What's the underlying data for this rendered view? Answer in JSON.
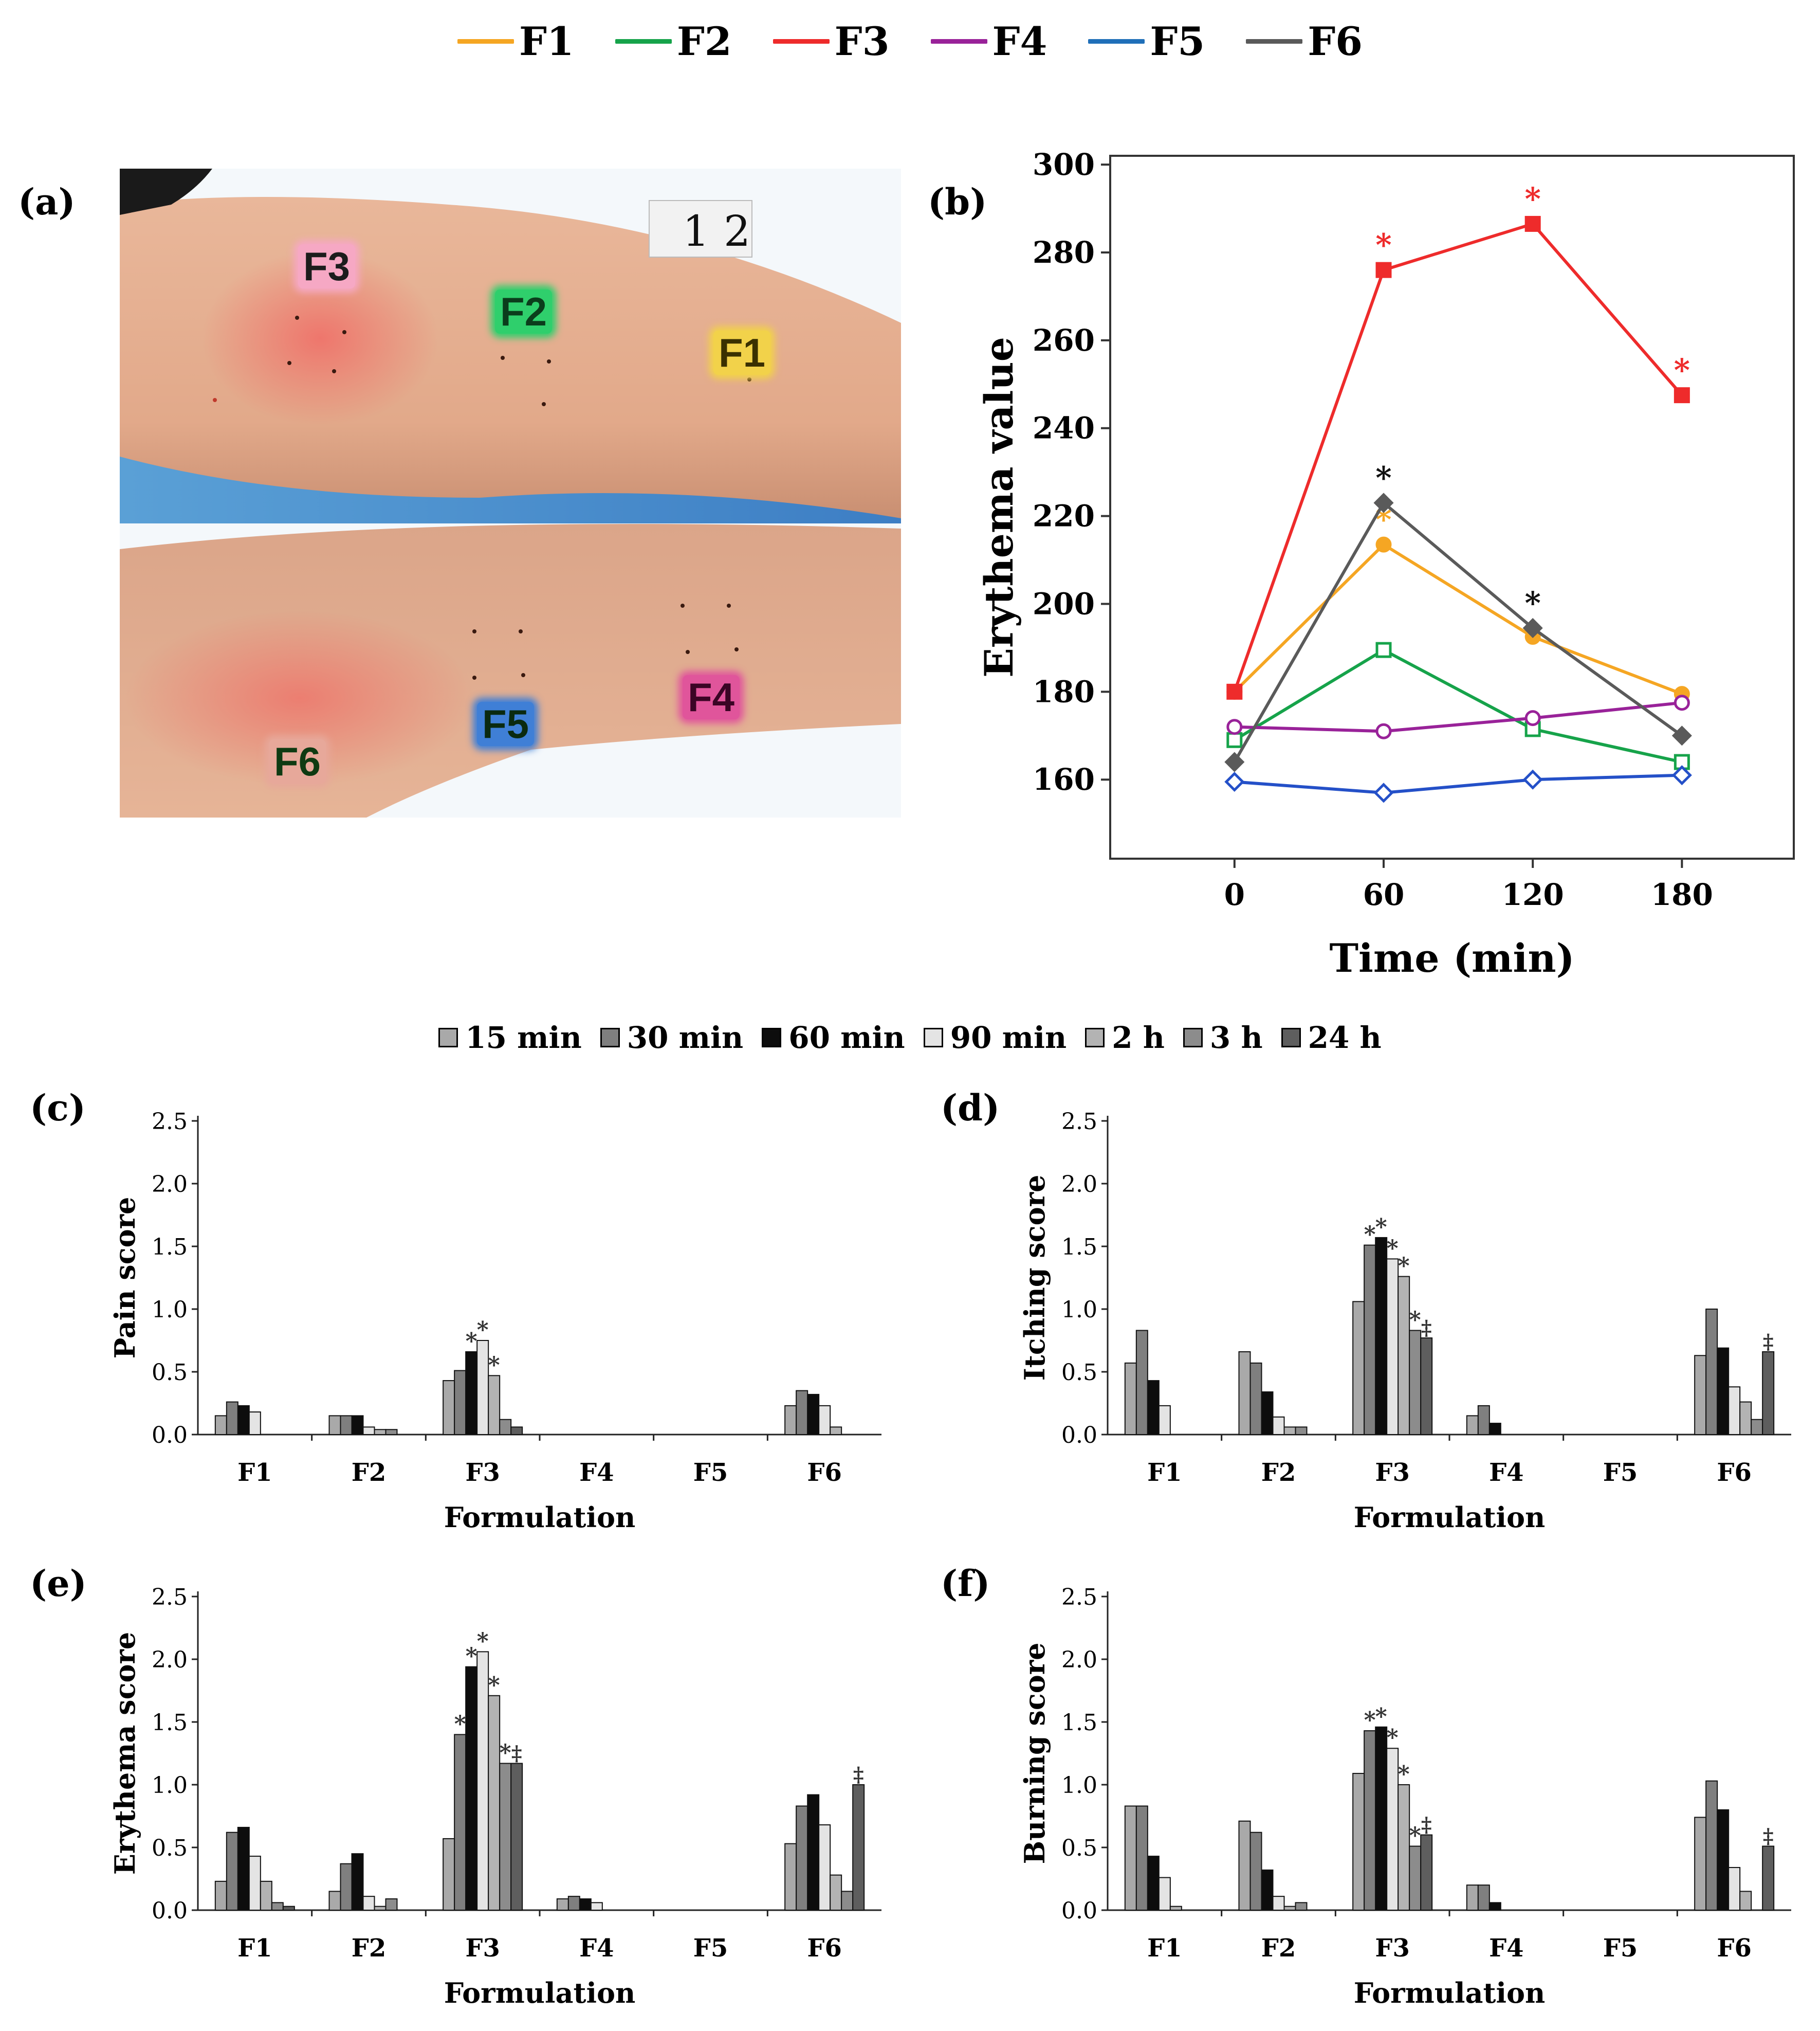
{
  "panel_labels": {
    "a": "(a)",
    "b": "(b)",
    "c": "(c)",
    "d": "(d)",
    "e": "(e)",
    "f": "(f)"
  },
  "photo": {
    "labels": [
      {
        "text": "F3",
        "bg": "#f6a8c4",
        "color": "#1c1c1c"
      },
      {
        "text": "F2",
        "bg": "#2fcf6c",
        "color": "#0b3d1c"
      },
      {
        "text": "F1",
        "bg": "#f2d24a",
        "color": "#3a3000"
      },
      {
        "text": "F4",
        "bg": "#e0559b",
        "color": "#3b0525"
      },
      {
        "text": "F5",
        "bg": "#3f7fd6",
        "color": "#0a2a10"
      },
      {
        "text": "F6",
        "bg": "#e7a89a",
        "color": "#0f3a12"
      }
    ],
    "ruler_numbers": [
      "1",
      "2"
    ]
  },
  "legend_top": [
    {
      "name": "F1",
      "color": "#f5a623"
    },
    {
      "name": "F2",
      "color": "#16a34a"
    },
    {
      "name": "F3",
      "color": "#ee2b2b"
    },
    {
      "name": "F4",
      "color": "#992299"
    },
    {
      "name": "F5",
      "color": "#1f6fb8"
    },
    {
      "name": "F6",
      "color": "#5a5a5a"
    }
  ],
  "legend_bars": [
    {
      "name": "15 min",
      "color": "#a9a9a9"
    },
    {
      "name": "30 min",
      "color": "#7f7f7f"
    },
    {
      "name": "60 min",
      "color": "#0d0d0d"
    },
    {
      "name": "90 min",
      "color": "#e4e4e4"
    },
    {
      "name": "2 h",
      "color": "#b3b3b3"
    },
    {
      "name": "3 h",
      "color": "#8c8c8c"
    },
    {
      "name": "24 h",
      "color": "#5e5e5e"
    }
  ],
  "chart_data": [
    {
      "id": "b",
      "type": "line",
      "xlabel": "Time (min)",
      "ylabel": "Erythema value",
      "x": [
        0,
        60,
        120,
        180
      ],
      "xticks": [
        "0",
        "60",
        "120",
        "180"
      ],
      "yticks": [
        "160",
        "180",
        "200",
        "220",
        "240",
        "260",
        "280",
        "300"
      ],
      "xlim": [
        -50,
        225
      ],
      "ylim": [
        142,
        302
      ],
      "series": [
        {
          "name": "F1",
          "color": "#f5a623",
          "marker": "circle-filled",
          "values": [
            180,
            213.5,
            192.5,
            179.5
          ],
          "stars": [
            false,
            true,
            false,
            false
          ]
        },
        {
          "name": "F2",
          "color": "#16a34a",
          "marker": "square-open",
          "values": [
            169,
            189.5,
            171.5,
            164
          ],
          "stars": [
            false,
            false,
            false,
            false
          ]
        },
        {
          "name": "F3",
          "color": "#ee2b2b",
          "marker": "square-filled",
          "values": [
            180,
            276,
            286.5,
            247.5
          ],
          "stars": [
            false,
            true,
            true,
            true
          ]
        },
        {
          "name": "F4",
          "color": "#992299",
          "marker": "circle-open",
          "values": [
            172,
            171,
            174,
            177.5
          ],
          "stars": [
            false,
            false,
            false,
            false
          ]
        },
        {
          "name": "F5",
          "color": "#2450c8",
          "marker": "diamond-open",
          "values": [
            159.5,
            157,
            160,
            161
          ],
          "stars": [
            false,
            false,
            false,
            false
          ]
        },
        {
          "name": "F6",
          "color": "#5a5a5a",
          "marker": "diamond-filled",
          "values": [
            164,
            223,
            194.5,
            170
          ],
          "stars": [
            false,
            true,
            true,
            false
          ]
        }
      ]
    },
    {
      "id": "c",
      "type": "bar",
      "ylabel": "Pain score",
      "xlabel": "Formulation",
      "categories": [
        "F1",
        "F2",
        "F3",
        "F4",
        "F5",
        "F6"
      ],
      "ylim": [
        0,
        2.5
      ],
      "yticks": [
        "0.0",
        "0.5",
        "1.0",
        "1.5",
        "2.0",
        "2.5"
      ],
      "series": [
        {
          "name": "15 min",
          "values": [
            0.15,
            0.15,
            0.43,
            0,
            0,
            0.23
          ]
        },
        {
          "name": "30 min",
          "values": [
            0.26,
            0.15,
            0.51,
            0,
            0,
            0.35
          ]
        },
        {
          "name": "60 min",
          "values": [
            0.23,
            0.15,
            0.66,
            0,
            0,
            0.32
          ]
        },
        {
          "name": "90 min",
          "values": [
            0.18,
            0.06,
            0.75,
            0,
            0,
            0.23
          ]
        },
        {
          "name": "2 h",
          "values": [
            0,
            0.04,
            0.47,
            0,
            0,
            0.06
          ]
        },
        {
          "name": "3 h",
          "values": [
            0,
            0.04,
            0.12,
            0,
            0,
            0
          ]
        },
        {
          "name": "24 h",
          "values": [
            0,
            0,
            0.06,
            0,
            0,
            0
          ]
        }
      ],
      "annotations": [
        {
          "cat": 2,
          "ser": 2,
          "text": "*"
        },
        {
          "cat": 2,
          "ser": 3,
          "text": "*"
        },
        {
          "cat": 2,
          "ser": 4,
          "text": "*"
        }
      ]
    },
    {
      "id": "d",
      "type": "bar",
      "ylabel": "Itching score",
      "xlabel": "Formulation",
      "categories": [
        "F1",
        "F2",
        "F3",
        "F4",
        "F5",
        "F6"
      ],
      "ylim": [
        0,
        2.5
      ],
      "yticks": [
        "0.0",
        "0.5",
        "1.0",
        "1.5",
        "2.0",
        "2.5"
      ],
      "series": [
        {
          "name": "15 min",
          "values": [
            0.57,
            0.66,
            1.06,
            0.15,
            0,
            0.63
          ]
        },
        {
          "name": "30 min",
          "values": [
            0.83,
            0.57,
            1.51,
            0.23,
            0,
            1.0
          ]
        },
        {
          "name": "60 min",
          "values": [
            0.43,
            0.34,
            1.57,
            0.09,
            0,
            0.69
          ]
        },
        {
          "name": "90 min",
          "values": [
            0.23,
            0.14,
            1.4,
            0,
            0,
            0.38
          ]
        },
        {
          "name": "2 h",
          "values": [
            0,
            0.06,
            1.26,
            0,
            0,
            0.26
          ]
        },
        {
          "name": "3 h",
          "values": [
            0,
            0.06,
            0.83,
            0,
            0,
            0.12
          ]
        },
        {
          "name": "24 h",
          "values": [
            0,
            0,
            0.77,
            0,
            0,
            0.66
          ]
        }
      ],
      "annotations": [
        {
          "cat": 2,
          "ser": 1,
          "text": "*"
        },
        {
          "cat": 2,
          "ser": 2,
          "text": "*"
        },
        {
          "cat": 2,
          "ser": 3,
          "text": "*"
        },
        {
          "cat": 2,
          "ser": 4,
          "text": "*"
        },
        {
          "cat": 2,
          "ser": 5,
          "text": "*"
        },
        {
          "cat": 2,
          "ser": 6,
          "text": "‡"
        },
        {
          "cat": 5,
          "ser": 6,
          "text": "‡"
        }
      ]
    },
    {
      "id": "e",
      "type": "bar",
      "ylabel": "Erythema score",
      "xlabel": "Formulation",
      "categories": [
        "F1",
        "F2",
        "F3",
        "F4",
        "F5",
        "F6"
      ],
      "ylim": [
        0,
        2.5
      ],
      "yticks": [
        "0.0",
        "0.5",
        "1.0",
        "1.5",
        "2.0",
        "2.5"
      ],
      "series": [
        {
          "name": "15 min",
          "values": [
            0.23,
            0.15,
            0.57,
            0.09,
            0,
            0.53
          ]
        },
        {
          "name": "30 min",
          "values": [
            0.62,
            0.37,
            1.4,
            0.11,
            0,
            0.83
          ]
        },
        {
          "name": "60 min",
          "values": [
            0.66,
            0.45,
            1.94,
            0.09,
            0,
            0.92
          ]
        },
        {
          "name": "90 min",
          "values": [
            0.43,
            0.11,
            2.06,
            0.06,
            0,
            0.68
          ]
        },
        {
          "name": "2 h",
          "values": [
            0.23,
            0.03,
            1.71,
            0,
            0,
            0.28
          ]
        },
        {
          "name": "3 h",
          "values": [
            0.06,
            0.09,
            1.17,
            0,
            0,
            0.15
          ]
        },
        {
          "name": "24 h",
          "values": [
            0.03,
            0,
            1.17,
            0,
            0,
            1.0
          ]
        }
      ],
      "annotations": [
        {
          "cat": 2,
          "ser": 1,
          "text": "*"
        },
        {
          "cat": 2,
          "ser": 2,
          "text": "*"
        },
        {
          "cat": 2,
          "ser": 3,
          "text": "*"
        },
        {
          "cat": 2,
          "ser": 4,
          "text": "*"
        },
        {
          "cat": 2,
          "ser": 5,
          "text": "*"
        },
        {
          "cat": 2,
          "ser": 6,
          "text": "‡"
        },
        {
          "cat": 5,
          "ser": 6,
          "text": "‡"
        }
      ]
    },
    {
      "id": "f",
      "type": "bar",
      "ylabel": "Burning score",
      "xlabel": "Formulation",
      "categories": [
        "F1",
        "F2",
        "F3",
        "F4",
        "F5",
        "F6"
      ],
      "ylim": [
        0,
        2.5
      ],
      "yticks": [
        "0.0",
        "0.5",
        "1.0",
        "1.5",
        "2.0",
        "2.5"
      ],
      "series": [
        {
          "name": "15 min",
          "values": [
            0.83,
            0.71,
            1.09,
            0.2,
            0,
            0.74
          ]
        },
        {
          "name": "30 min",
          "values": [
            0.83,
            0.62,
            1.43,
            0.2,
            0,
            1.03
          ]
        },
        {
          "name": "60 min",
          "values": [
            0.43,
            0.32,
            1.46,
            0.06,
            0,
            0.8
          ]
        },
        {
          "name": "90 min",
          "values": [
            0.26,
            0.11,
            1.29,
            0,
            0,
            0.34
          ]
        },
        {
          "name": "2 h",
          "values": [
            0.03,
            0.03,
            1.0,
            0,
            0,
            0.15
          ]
        },
        {
          "name": "3 h",
          "values": [
            0,
            0.06,
            0.51,
            0,
            0,
            0
          ]
        },
        {
          "name": "24 h",
          "values": [
            0,
            0,
            0.6,
            0,
            0,
            0.51
          ]
        }
      ],
      "annotations": [
        {
          "cat": 2,
          "ser": 1,
          "text": "*"
        },
        {
          "cat": 2,
          "ser": 2,
          "text": "*"
        },
        {
          "cat": 2,
          "ser": 3,
          "text": "*"
        },
        {
          "cat": 2,
          "ser": 4,
          "text": "*"
        },
        {
          "cat": 2,
          "ser": 5,
          "text": "*"
        },
        {
          "cat": 2,
          "ser": 6,
          "text": "‡"
        },
        {
          "cat": 5,
          "ser": 6,
          "text": "‡"
        }
      ]
    }
  ]
}
